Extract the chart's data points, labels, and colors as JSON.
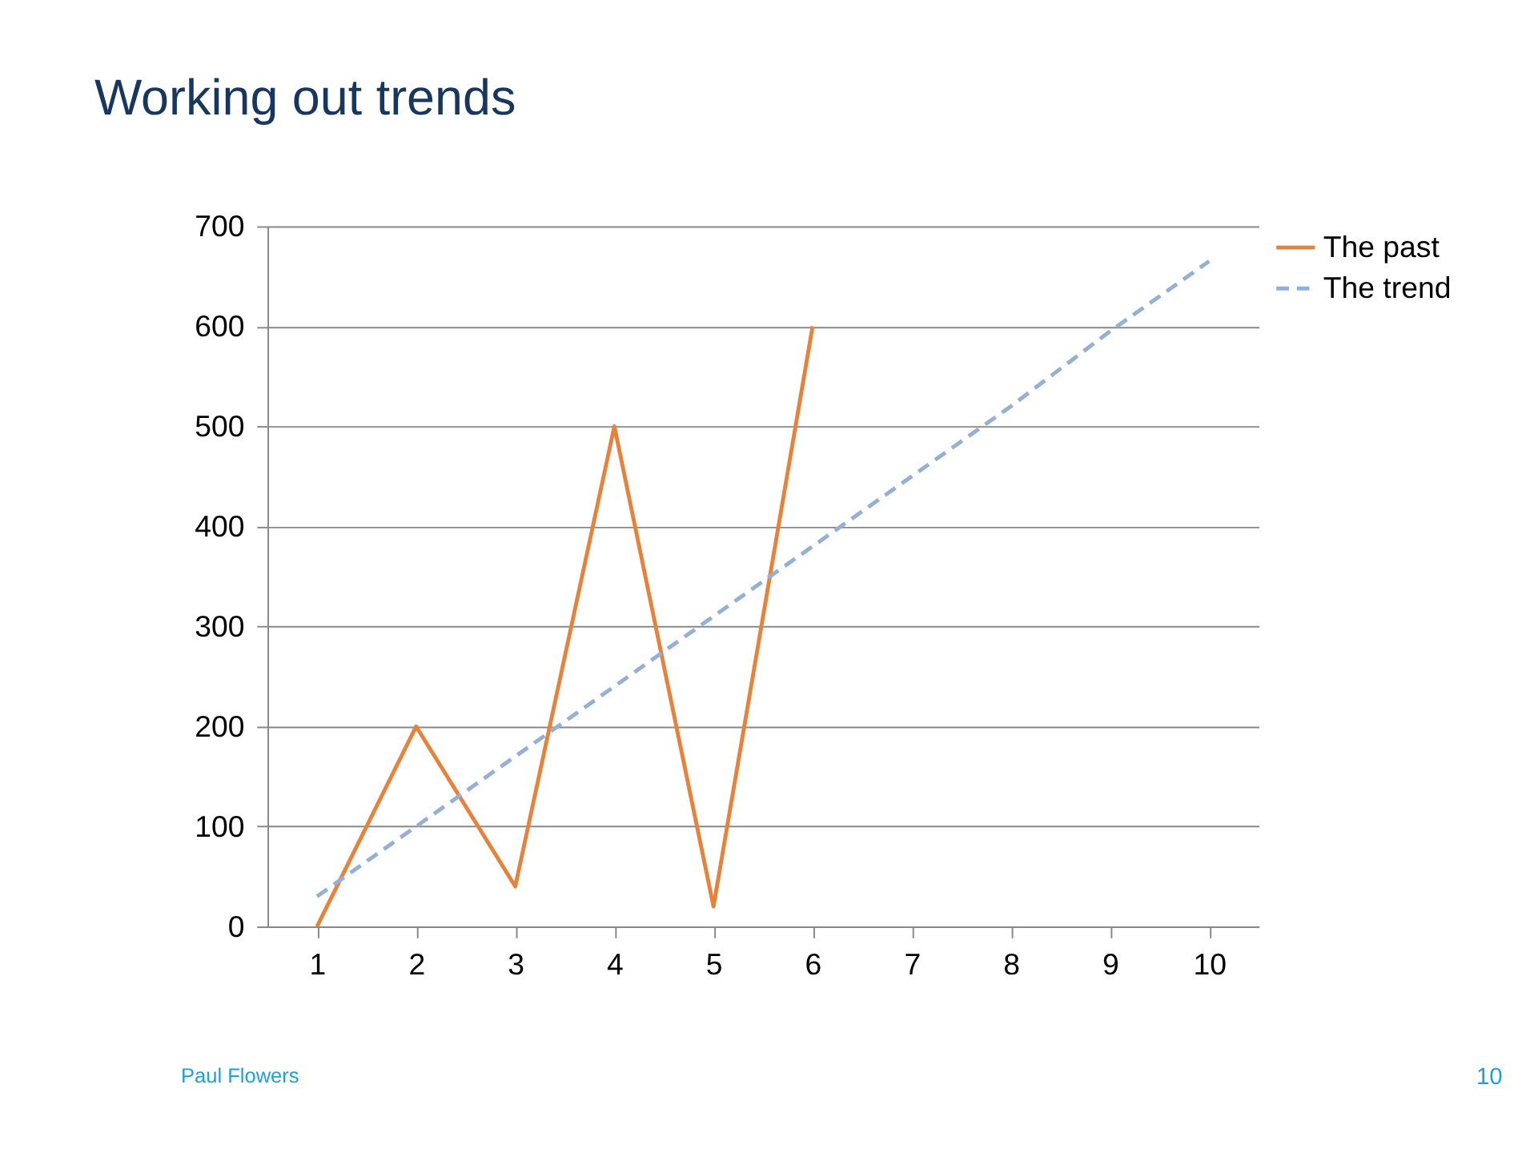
{
  "chart_data": {
    "type": "line",
    "title": "Working out trends",
    "categories": [
      "1",
      "2",
      "3",
      "4",
      "5",
      "6",
      "7",
      "8",
      "9",
      "10"
    ],
    "series": [
      {
        "name": "The past",
        "color": "#e8823a",
        "line_style": "solid",
        "values": [
          0,
          200,
          40,
          500,
          20,
          600,
          null,
          null,
          null,
          null
        ]
      },
      {
        "name": "The trend",
        "color": "#95b0d6",
        "line_style": "dashed",
        "values": [
          30,
          100,
          170,
          240,
          310,
          380,
          450,
          520,
          595,
          665
        ]
      }
    ],
    "ylim": [
      0,
      700
    ],
    "yticks": [
      0,
      100,
      200,
      300,
      400,
      500,
      600,
      700
    ],
    "grid": "y",
    "legend": "right",
    "marker": "none",
    "annotations": [
      "Paul Flowers",
      "10"
    ]
  }
}
